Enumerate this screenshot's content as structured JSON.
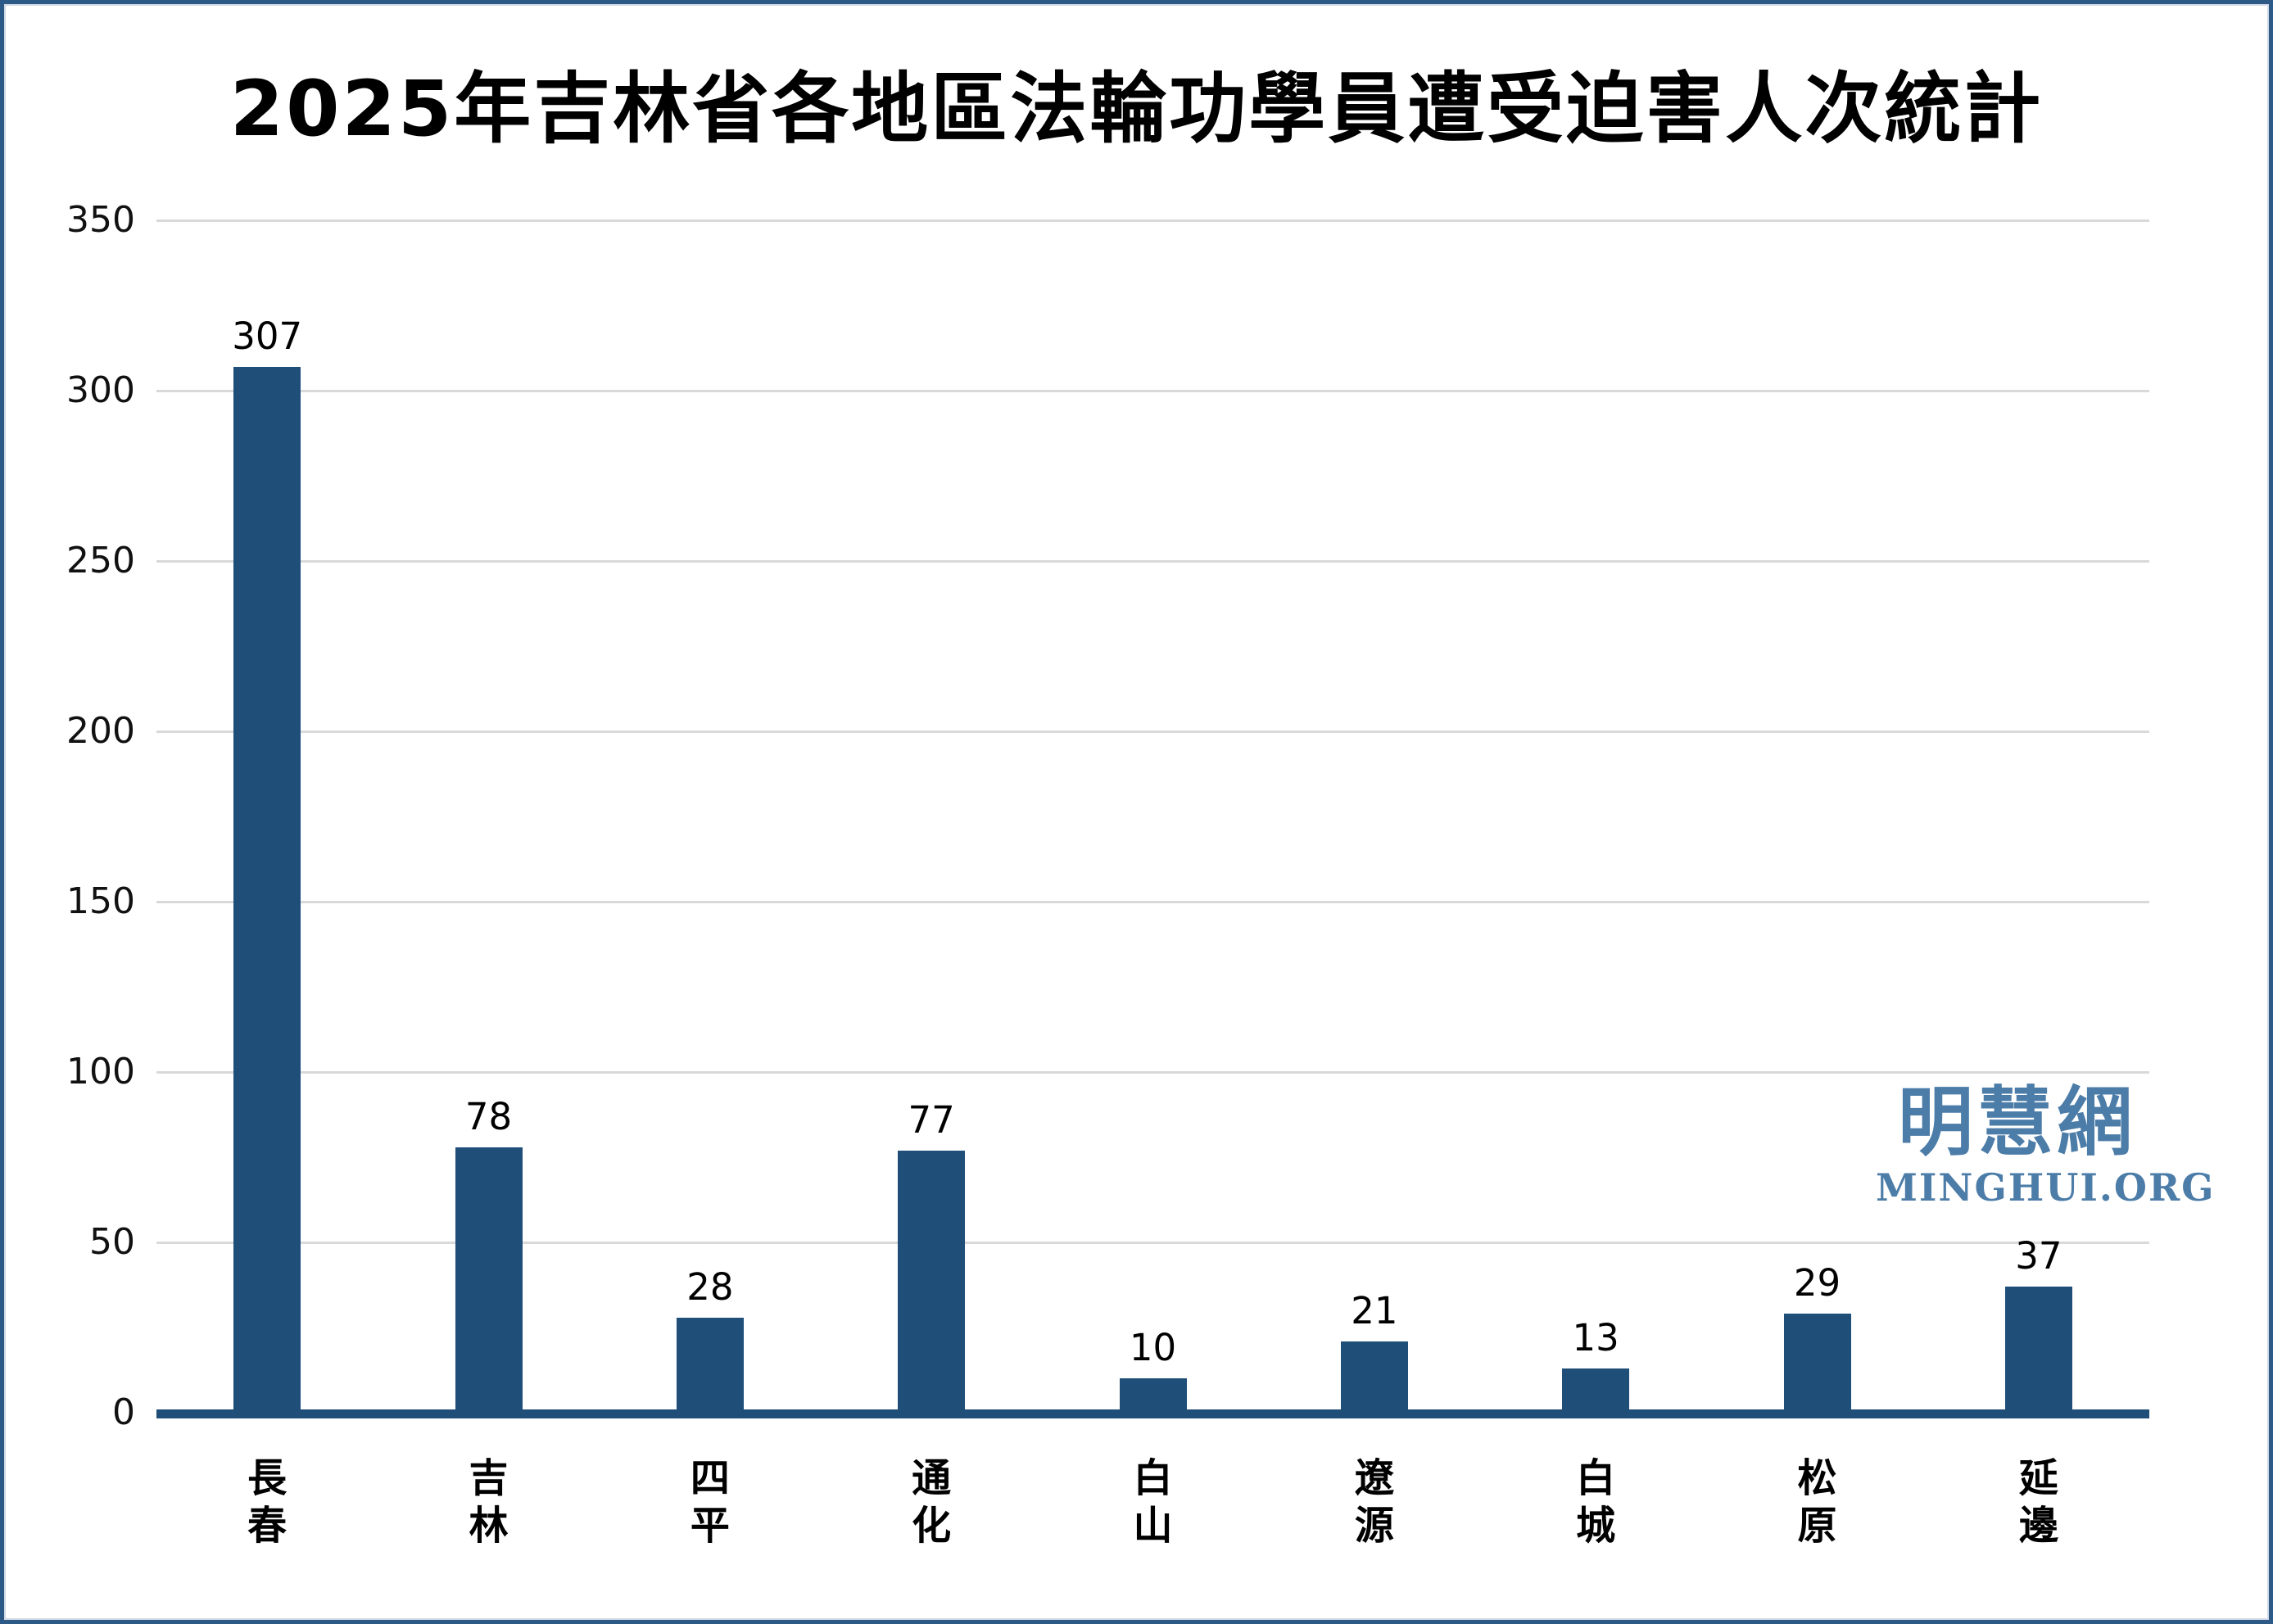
{
  "chart_data": {
    "type": "bar",
    "title": "2025年吉林省各地區法輪功學員遭受迫害人次統計",
    "categories": [
      "長春",
      "吉林",
      "四平",
      "通化",
      "白山",
      "遼源",
      "白城",
      "松原",
      "延邊"
    ],
    "values": [
      307,
      78,
      28,
      77,
      10,
      21,
      13,
      29,
      37
    ],
    "xlabel": "",
    "ylabel": "",
    "ylim": [
      0,
      350
    ],
    "ytick_step": 50,
    "yticks": [
      0,
      50,
      100,
      150,
      200,
      250,
      300,
      350
    ],
    "grid": "horizontal-only",
    "legend_position": "none",
    "bar_color": "#1F4E79",
    "axis_line_color": "#1F4E79",
    "gridline_color": "#D9D9D9",
    "value_label_color": "#000000",
    "category_label_orientation": "vertical-stacked"
  },
  "watermark": {
    "chinese": "明慧網",
    "domain": "MINGHUI.ORG",
    "color": "#4C7CA8"
  },
  "frame": {
    "border_color": "#2D5986",
    "background": "#FFFFFF"
  }
}
